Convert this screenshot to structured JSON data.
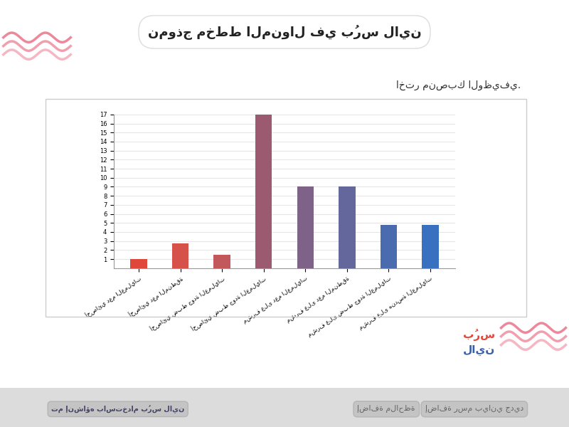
{
  "header": {
    "title": "نموذج مخطط المنوال في بُرس لاين"
  },
  "prompt": "اختر منصبك الوظيفي.",
  "chart_data": {
    "type": "bar",
    "categories": [
      "أخصائي دعم العمليات",
      "أخصائي دعم المنطقة",
      "أخصائي ضبط جودة العمليات",
      "أخصائي ضبط جودة العمليات",
      "مشرف على دعم العمليات",
      "مشرف على دعم المنطقة",
      "مشرف على ضبط جودة العمليات",
      "مشرف على هندسة العمليات"
    ],
    "values": [
      1.0,
      2.7,
      1.5,
      17,
      9,
      9,
      4.8,
      4.8
    ],
    "colors": [
      "#e0473b",
      "#d6514a",
      "#c2585c",
      "#9c5a70",
      "#7f6288",
      "#64679b",
      "#4a6cae",
      "#3a70c0"
    ],
    "ylim": [
      0,
      17
    ],
    "yticks": [
      1,
      2,
      3,
      4,
      5,
      6,
      7,
      8,
      9,
      10,
      11,
      12,
      13,
      14,
      15,
      16,
      17
    ],
    "grid": true
  },
  "logo": {
    "top": "بُرس",
    "bottom": "لاين"
  },
  "buttons": [
    "إضافة رسم بياني جديد",
    "إضافة ملاحظة"
  ],
  "footer_note": "تم إنشاؤه باستخدام بُرس لاين"
}
